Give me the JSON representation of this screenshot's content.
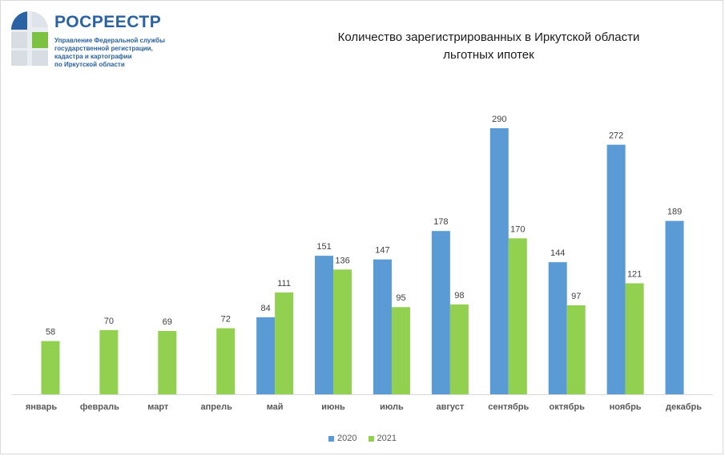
{
  "logo": {
    "name": "РОСРЕЕСТР",
    "subtitle_lines": [
      "Управление Федеральной службы",
      "государственной регистрации,",
      "кадастра и картографии",
      "по Иркутской области"
    ]
  },
  "colors": {
    "series_2020": "#5b9bd5",
    "series_2021": "#92d050",
    "brand": "#2a62a3"
  },
  "chart_data": {
    "type": "bar",
    "title_lines": [
      "Количество  зарегистрированных  в Иркутской области",
      "льготных ипотек"
    ],
    "categories": [
      "январь",
      "февраль",
      "март",
      "апрель",
      "май",
      "июнь",
      "июль",
      "август",
      "сентябрь",
      "октябрь",
      "ноябрь",
      "декабрь"
    ],
    "series": [
      {
        "name": "2020",
        "values": [
          null,
          null,
          null,
          null,
          84,
          151,
          147,
          178,
          290,
          144,
          272,
          189
        ]
      },
      {
        "name": "2021",
        "values": [
          58,
          70,
          69,
          72,
          111,
          136,
          95,
          98,
          170,
          97,
          121,
          null
        ]
      }
    ],
    "ylim": [
      0,
      290
    ],
    "grid": false,
    "legend_position": "bottom"
  }
}
